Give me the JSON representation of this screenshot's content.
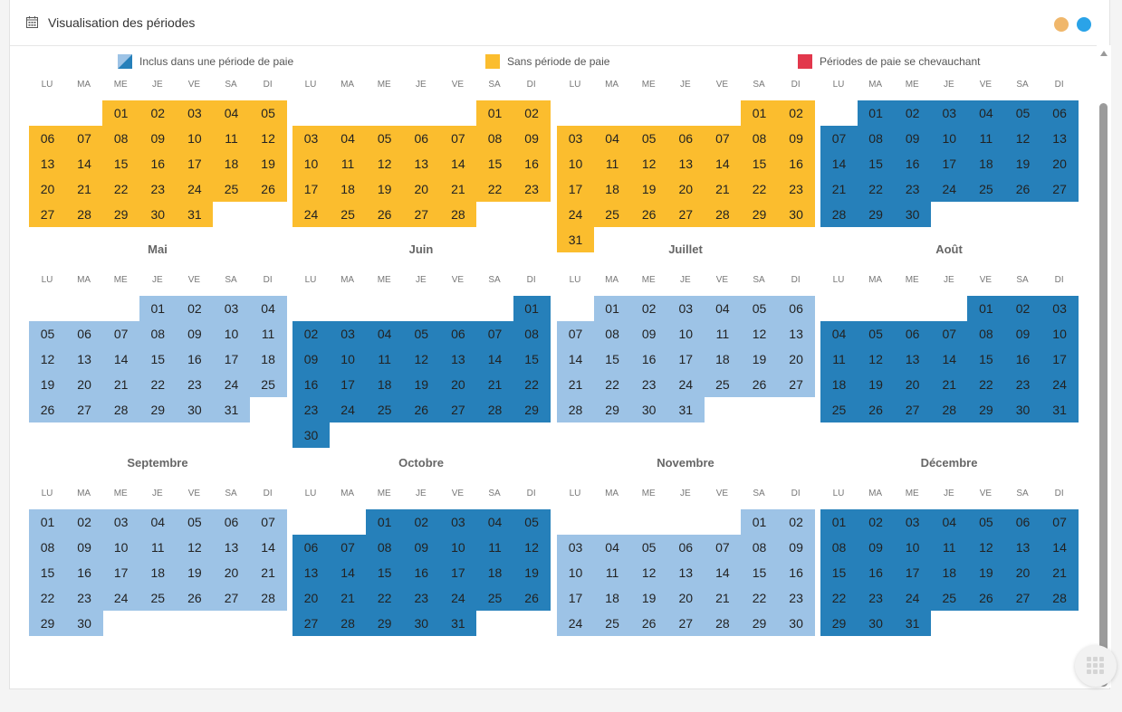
{
  "header": {
    "title": "Visualisation des périodes"
  },
  "legend": [
    {
      "label": "Inclus dans une période de paie",
      "kind": "included"
    },
    {
      "label": "Sans période de paie",
      "kind": "none"
    },
    {
      "label": "Périodes de paie se chevauchant",
      "kind": "overlap"
    }
  ],
  "colors": {
    "none": "#fbbd2e",
    "light": "#9dc3e6",
    "dark": "#2680ba",
    "overlap": "#e2384c",
    "accent_orange": "#f0b76b",
    "accent_blue": "#2aa3e8"
  },
  "weekdays": [
    "LU",
    "MA",
    "ME",
    "JE",
    "VE",
    "SA",
    "DI"
  ],
  "months": [
    {
      "name": "",
      "start": 2,
      "days": 31,
      "color": "none"
    },
    {
      "name": "",
      "start": 5,
      "days": 28,
      "color": "none"
    },
    {
      "name": "",
      "start": 5,
      "days": 31,
      "color": "none"
    },
    {
      "name": "",
      "start": 1,
      "days": 30,
      "color": "dark"
    },
    {
      "name": "Mai",
      "start": 3,
      "days": 31,
      "color": "light"
    },
    {
      "name": "Juin",
      "start": 6,
      "days": 30,
      "color": "dark",
      "first_day_color": "dark"
    },
    {
      "name": "Juillet",
      "start": 1,
      "days": 31,
      "color": "light"
    },
    {
      "name": "Août",
      "start": 4,
      "days": 31,
      "color": "dark"
    },
    {
      "name": "Septembre",
      "start": 0,
      "days": 30,
      "color": "light"
    },
    {
      "name": "Octobre",
      "start": 2,
      "days": 31,
      "color": "dark"
    },
    {
      "name": "Novembre",
      "start": 5,
      "days": 30,
      "color": "light"
    },
    {
      "name": "Décembre",
      "start": 0,
      "days": 31,
      "color": "dark"
    }
  ]
}
